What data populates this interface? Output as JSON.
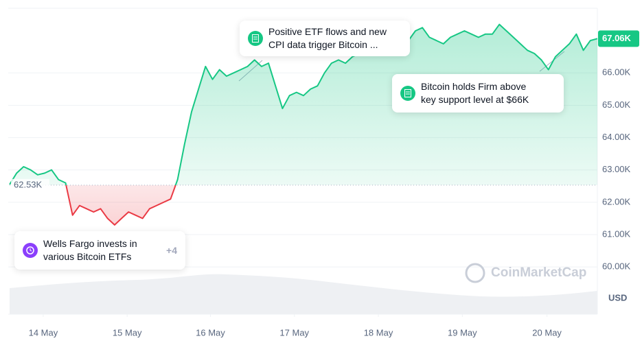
{
  "chart_data": {
    "type": "line",
    "values": [
      62550,
      62900,
      63100,
      63000,
      62850,
      62900,
      63000,
      62700,
      62600,
      61600,
      61900,
      61800,
      61700,
      61800,
      61500,
      61300,
      61500,
      61700,
      61600,
      61500,
      61800,
      61900,
      62000,
      62100,
      62700,
      63800,
      64800,
      65500,
      66200,
      65800,
      66100,
      65900,
      66000,
      66100,
      66200,
      66400,
      66200,
      66300,
      65600,
      64900,
      65300,
      65400,
      65300,
      65500,
      65600,
      66000,
      66300,
      66400,
      66300,
      66500,
      66600,
      66800,
      67000,
      67100,
      67200,
      67000,
      67100,
      67000,
      67300,
      67400,
      67100,
      67000,
      66900,
      67100,
      67200,
      67300,
      67200,
      67100,
      67200,
      67200,
      67500,
      67300,
      67100,
      66900,
      66700,
      66600,
      66400,
      66100,
      66500,
      66700,
      66900,
      67200,
      66700,
      67000,
      67060
    ],
    "color": "#16c784",
    "negative_color": "#ea3943",
    "baseline": {
      "value": 62530,
      "label": "62.53K"
    },
    "last_price": {
      "value": 67060,
      "label": "67.06K"
    },
    "xlim": [
      0,
      84
    ],
    "xticks": [
      {
        "value": 4.8,
        "label": "14 May"
      },
      {
        "value": 16.8,
        "label": "15 May"
      },
      {
        "value": 28.7,
        "label": "16 May"
      },
      {
        "value": 40.7,
        "label": "17 May"
      },
      {
        "value": 52.7,
        "label": "18 May"
      },
      {
        "value": 64.7,
        "label": "19 May"
      },
      {
        "value": 76.8,
        "label": "20 May"
      }
    ],
    "ylim": [
      58540,
      68000
    ],
    "yticks": [
      {
        "value": 60000,
        "label": "60.00K"
      },
      {
        "value": 61000,
        "label": "61.00K"
      },
      {
        "value": 62000,
        "label": "62.00K"
      },
      {
        "value": 63000,
        "label": "63.00K"
      },
      {
        "value": 64000,
        "label": "64.00K"
      },
      {
        "value": 65000,
        "label": "65.00K"
      },
      {
        "value": 66000,
        "label": "66.00K"
      }
    ],
    "grid": true,
    "y_unit": "USD",
    "watermark": "CoinMarketCap",
    "annotations": [
      {
        "lines": [
          "Positive ETF flows and new",
          "CPI data trigger Bitcoin ..."
        ]
      },
      {
        "lines": [
          "Bitcoin holds Firm above",
          "key support level at $66K"
        ]
      },
      {
        "lines": [
          "Wells Fargo invests in",
          "various Bitcoin ETFs"
        ],
        "more": "+4"
      }
    ]
  }
}
